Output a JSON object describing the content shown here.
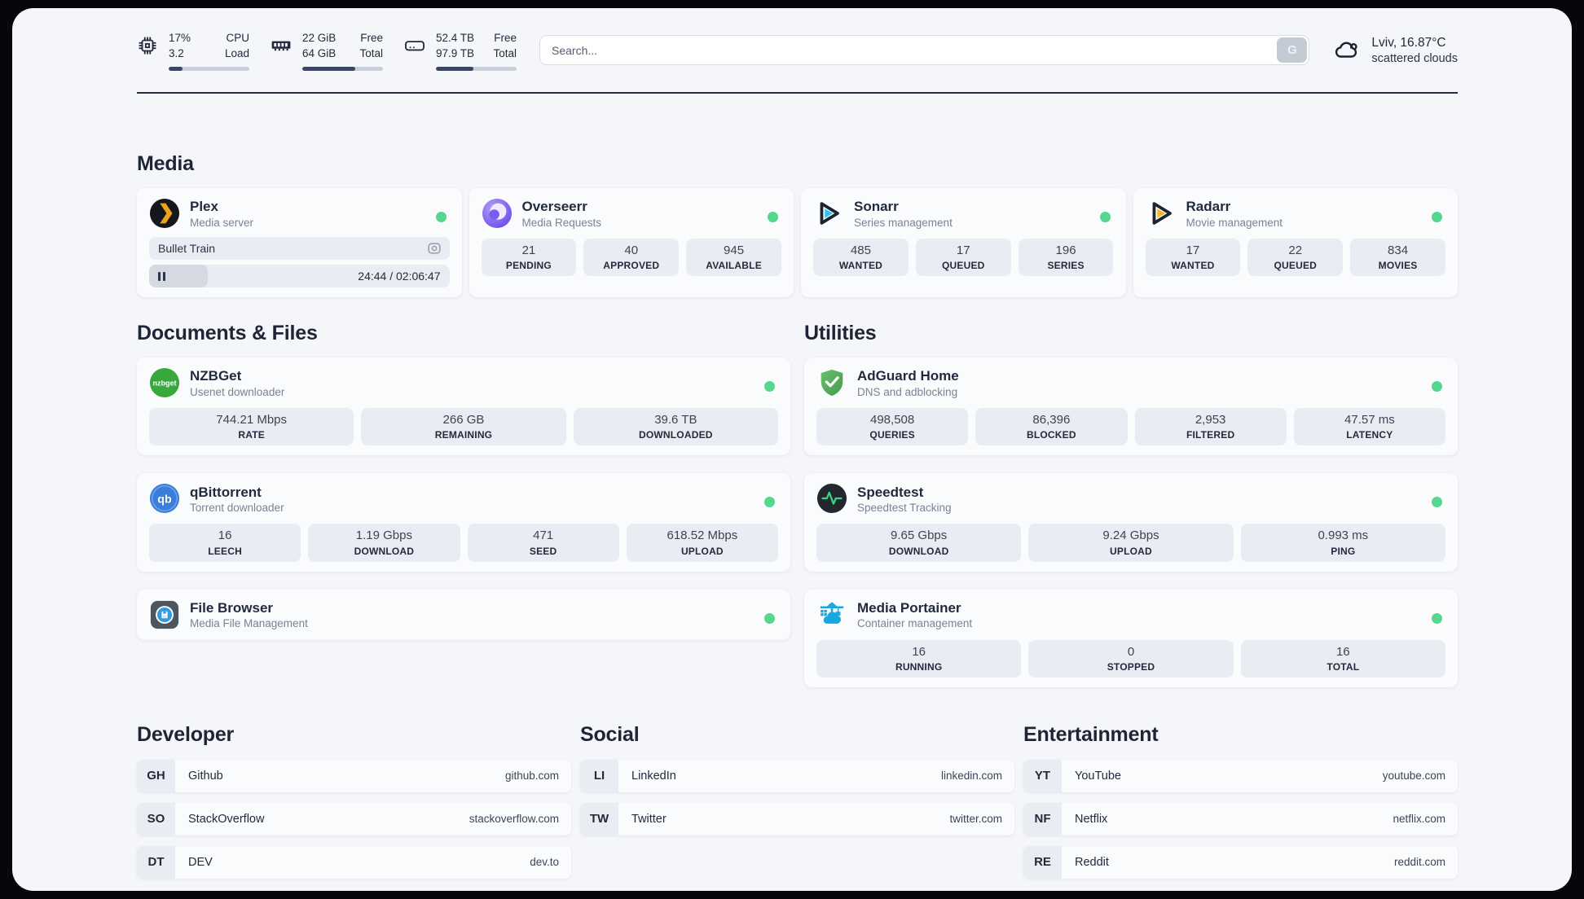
{
  "header": {
    "stats": [
      {
        "icon": "cpu-icon",
        "rows": [
          {
            "value": "17%",
            "label": "CPU"
          },
          {
            "value": "3.2",
            "label": "Load"
          }
        ],
        "progress": 17
      },
      {
        "icon": "ram-icon",
        "rows": [
          {
            "value": "22 GiB",
            "label": "Free"
          },
          {
            "value": "64 GiB",
            "label": "Total"
          }
        ],
        "progress": 66
      },
      {
        "icon": "disk-icon",
        "rows": [
          {
            "value": "52.4 TB",
            "label": "Free"
          },
          {
            "value": "97.9 TB",
            "label": "Total"
          }
        ],
        "progress": 46
      }
    ],
    "search": {
      "placeholder": "Search...",
      "button_label": "G"
    },
    "weather": {
      "location": "Lviv, 16.87°C",
      "condition": "scattered clouds"
    }
  },
  "sections": {
    "media": {
      "title": "Media",
      "apps": [
        {
          "name": "Plex",
          "subtitle": "Media server",
          "status": "online",
          "now_playing": "Bullet Train",
          "player": {
            "time": "24:44 / 02:06:47",
            "progress": 19.5
          }
        },
        {
          "name": "Overseerr",
          "subtitle": "Media Requests",
          "status": "online",
          "stats": [
            {
              "value": "21",
              "label": "PENDING"
            },
            {
              "value": "40",
              "label": "APPROVED"
            },
            {
              "value": "945",
              "label": "AVAILABLE"
            }
          ]
        },
        {
          "name": "Sonarr",
          "subtitle": "Series management",
          "status": "online",
          "stats": [
            {
              "value": "485",
              "label": "WANTED"
            },
            {
              "value": "17",
              "label": "QUEUED"
            },
            {
              "value": "196",
              "label": "SERIES"
            }
          ]
        },
        {
          "name": "Radarr",
          "subtitle": "Movie management",
          "status": "online",
          "stats": [
            {
              "value": "17",
              "label": "WANTED"
            },
            {
              "value": "22",
              "label": "QUEUED"
            },
            {
              "value": "834",
              "label": "MOVIES"
            }
          ]
        }
      ]
    },
    "documents": {
      "title": "Documents & Files",
      "apps": [
        {
          "name": "NZBGet",
          "subtitle": "Usenet downloader",
          "status": "online",
          "stats": [
            {
              "value": "744.21 Mbps",
              "label": "RATE"
            },
            {
              "value": "266 GB",
              "label": "REMAINING"
            },
            {
              "value": "39.6 TB",
              "label": "DOWNLOADED"
            }
          ]
        },
        {
          "name": "qBittorrent",
          "subtitle": "Torrent downloader",
          "status": "online",
          "stats": [
            {
              "value": "16",
              "label": "LEECH"
            },
            {
              "value": "1.19 Gbps",
              "label": "DOWNLOAD"
            },
            {
              "value": "471",
              "label": "SEED"
            },
            {
              "value": "618.52 Mbps",
              "label": "UPLOAD"
            }
          ]
        },
        {
          "name": "File Browser",
          "subtitle": "Media File Management",
          "status": "online"
        }
      ]
    },
    "utilities": {
      "title": "Utilities",
      "apps": [
        {
          "name": "AdGuard Home",
          "subtitle": "DNS and adblocking",
          "status": "online",
          "stats": [
            {
              "value": "498,508",
              "label": "QUERIES"
            },
            {
              "value": "86,396",
              "label": "BLOCKED"
            },
            {
              "value": "2,953",
              "label": "FILTERED"
            },
            {
              "value": "47.57 ms",
              "label": "LATENCY"
            }
          ]
        },
        {
          "name": "Speedtest",
          "subtitle": "Speedtest Tracking",
          "status": "online",
          "stats": [
            {
              "value": "9.65 Gbps",
              "label": "DOWNLOAD"
            },
            {
              "value": "9.24 Gbps",
              "label": "UPLOAD"
            },
            {
              "value": "0.993 ms",
              "label": "PING"
            }
          ]
        },
        {
          "name": "Media Portainer",
          "subtitle": "Container management",
          "status": "online",
          "stats": [
            {
              "value": "16",
              "label": "RUNNING"
            },
            {
              "value": "0",
              "label": "STOPPED"
            },
            {
              "value": "16",
              "label": "TOTAL"
            }
          ]
        }
      ]
    },
    "links": [
      {
        "title": "Developer",
        "items": [
          {
            "abbr": "GH",
            "name": "Github",
            "url": "github.com"
          },
          {
            "abbr": "SO",
            "name": "StackOverflow",
            "url": "stackoverflow.com"
          },
          {
            "abbr": "DT",
            "name": "DEV",
            "url": "dev.to"
          }
        ]
      },
      {
        "title": "Social",
        "items": [
          {
            "abbr": "LI",
            "name": "LinkedIn",
            "url": "linkedin.com"
          },
          {
            "abbr": "TW",
            "name": "Twitter",
            "url": "twitter.com"
          }
        ]
      },
      {
        "title": "Entertainment",
        "items": [
          {
            "abbr": "YT",
            "name": "YouTube",
            "url": "youtube.com"
          },
          {
            "abbr": "NF",
            "name": "Netflix",
            "url": "netflix.com"
          },
          {
            "abbr": "RE",
            "name": "Reddit",
            "url": "reddit.com"
          }
        ]
      }
    ]
  },
  "colors": {
    "status_online": "#56d68f",
    "text_dark": "#222a3e",
    "page_bg": "#f5f6f9",
    "outer_bg": "#05070b"
  }
}
